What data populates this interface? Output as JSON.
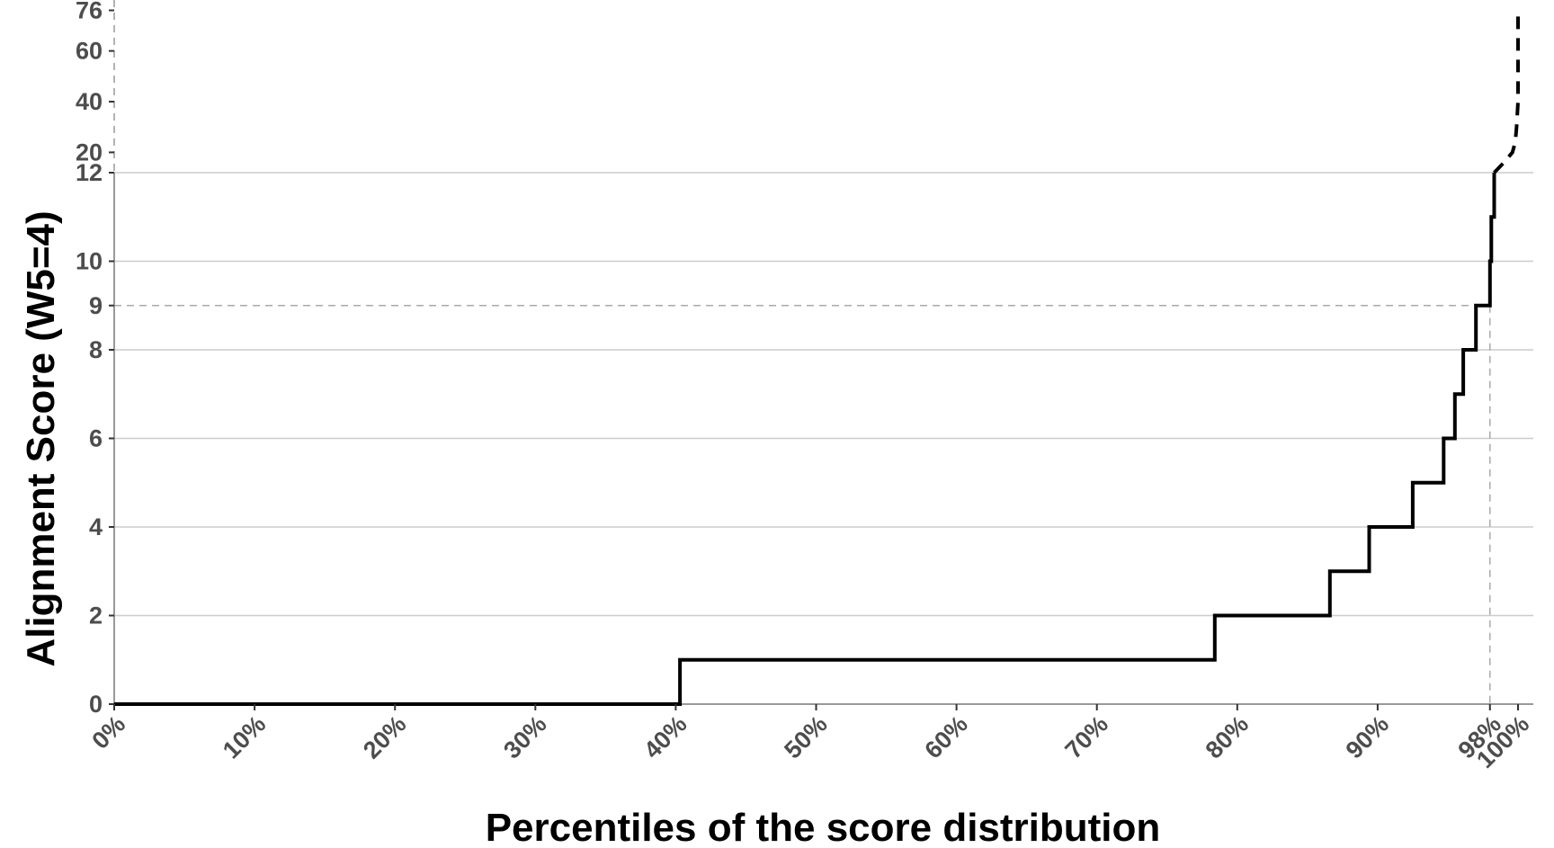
{
  "chart_data": {
    "type": "line",
    "title": "",
    "xlabel": "Percentiles of the score distribution",
    "ylabel": "Alignment Score (W5=4)",
    "x_ticks": [
      {
        "value": 0,
        "label": "0%"
      },
      {
        "value": 10,
        "label": "10%"
      },
      {
        "value": 20,
        "label": "20%"
      },
      {
        "value": 30,
        "label": "30%"
      },
      {
        "value": 40,
        "label": "40%"
      },
      {
        "value": 50,
        "label": "50%"
      },
      {
        "value": 60,
        "label": "60%"
      },
      {
        "value": 70,
        "label": "70%"
      },
      {
        "value": 80,
        "label": "80%"
      },
      {
        "value": 90,
        "label": "90%"
      },
      {
        "value": 98,
        "label": "98%"
      },
      {
        "value": 100,
        "label": "100%"
      }
    ],
    "xlim": [
      0,
      100
    ],
    "ylim_lower": [
      0,
      12
    ],
    "y_ticks_lower": [
      0,
      2,
      4,
      6,
      8,
      9,
      10,
      12
    ],
    "ylim_upper": [
      12,
      76
    ],
    "y_ticks_upper": [
      20,
      40,
      60,
      76
    ],
    "grid": "horizontal",
    "reference_lines": {
      "x": 98,
      "y": 9
    },
    "series": [
      {
        "style": "solid",
        "step": true,
        "x": [
          0,
          40.3,
          40.3,
          78.4,
          78.4,
          86.6,
          86.6,
          89.4,
          89.4,
          92.5,
          92.5,
          94.7,
          94.7,
          95.5,
          95.5,
          96.1,
          96.1,
          97.0,
          97.0,
          98.0,
          98.0,
          98.1,
          98.1,
          98.3,
          98.3
        ],
        "y": [
          0,
          0,
          1,
          1,
          2,
          2,
          3,
          3,
          4,
          4,
          5,
          5,
          6,
          6,
          7,
          7,
          8,
          8,
          9,
          9,
          10,
          10,
          11,
          11,
          12
        ]
      },
      {
        "style": "dashed",
        "step": false,
        "x": [
          98.3,
          99.0,
          99.6,
          99.8,
          99.9,
          100,
          100
        ],
        "y": [
          12,
          16,
          20,
          24,
          30,
          40,
          76
        ]
      }
    ]
  }
}
